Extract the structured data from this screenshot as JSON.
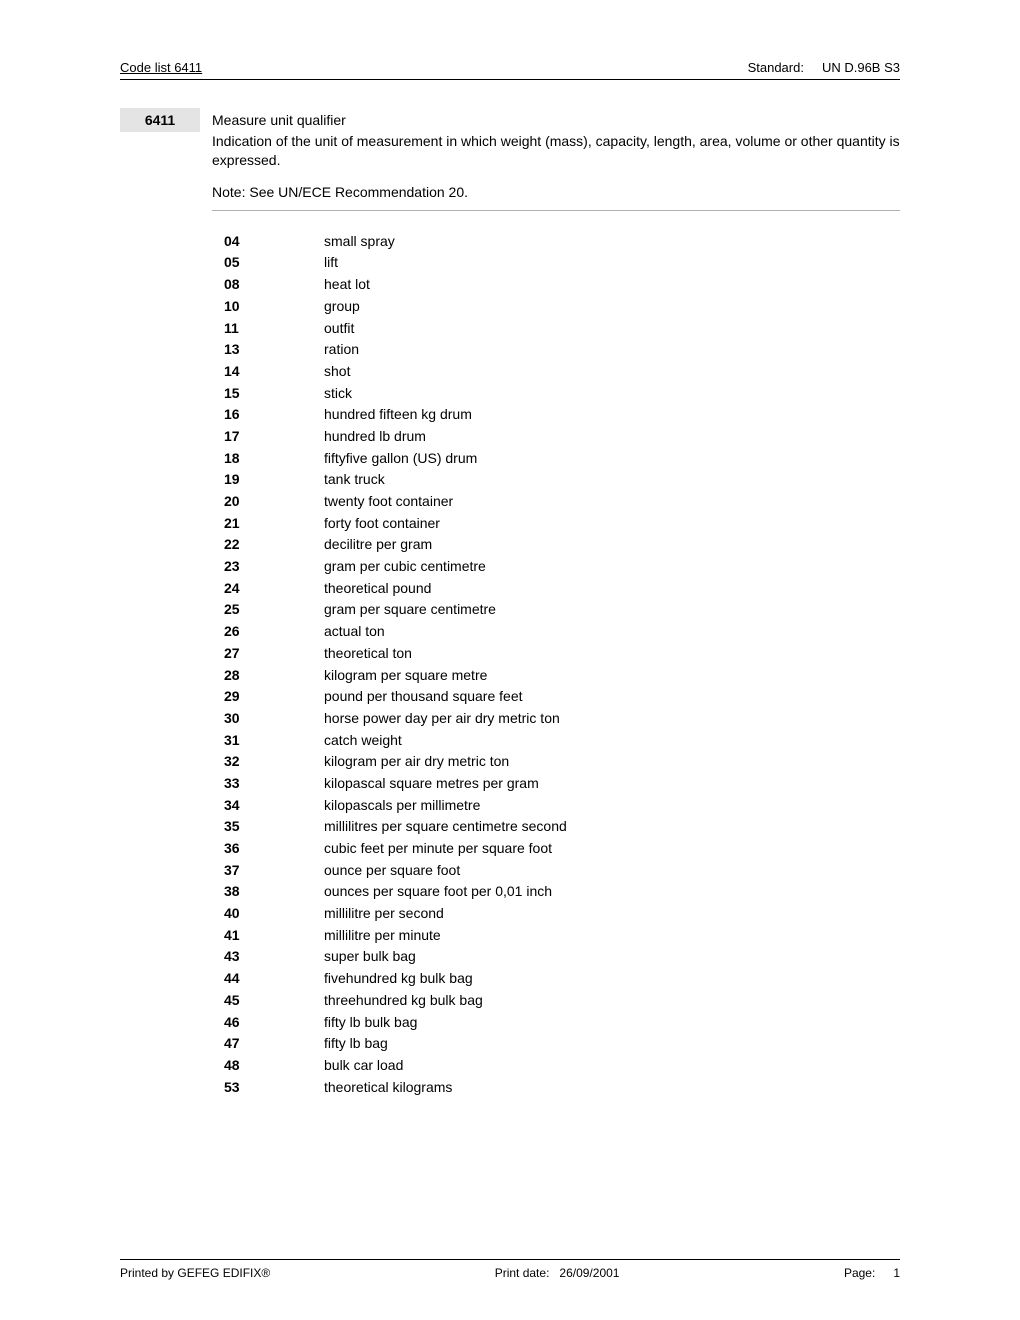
{
  "header": {
    "left": "Code list  6411",
    "standard_label": "Standard:",
    "standard_value": "UN D.96B S3"
  },
  "section": {
    "code": "6411",
    "title": "Measure unit qualifier",
    "description": "Indication of the unit of measurement in which weight (mass), capacity, length, area, volume or other quantity is expressed.",
    "note": "Note: See UN/ECE Recommendation 20."
  },
  "codes": [
    {
      "k": "04",
      "v": "small spray"
    },
    {
      "k": "05",
      "v": "lift"
    },
    {
      "k": "08",
      "v": "heat lot"
    },
    {
      "k": "10",
      "v": "group"
    },
    {
      "k": "11",
      "v": "outfit"
    },
    {
      "k": "13",
      "v": "ration"
    },
    {
      "k": "14",
      "v": "shot"
    },
    {
      "k": "15",
      "v": "stick"
    },
    {
      "k": "16",
      "v": "hundred fifteen kg drum"
    },
    {
      "k": "17",
      "v": "hundred lb drum"
    },
    {
      "k": "18",
      "v": "fiftyfive gallon (US) drum"
    },
    {
      "k": "19",
      "v": "tank truck"
    },
    {
      "k": "20",
      "v": "twenty foot container"
    },
    {
      "k": "21",
      "v": "forty foot container"
    },
    {
      "k": "22",
      "v": "decilitre per gram"
    },
    {
      "k": "23",
      "v": "gram per cubic centimetre"
    },
    {
      "k": "24",
      "v": "theoretical pound"
    },
    {
      "k": "25",
      "v": "gram per square centimetre"
    },
    {
      "k": "26",
      "v": "actual ton"
    },
    {
      "k": "27",
      "v": "theoretical ton"
    },
    {
      "k": "28",
      "v": "kilogram per square metre"
    },
    {
      "k": "29",
      "v": "pound per thousand square feet"
    },
    {
      "k": "30",
      "v": "horse power day per air dry metric ton"
    },
    {
      "k": "31",
      "v": "catch weight"
    },
    {
      "k": "32",
      "v": "kilogram per air dry metric ton"
    },
    {
      "k": "33",
      "v": "kilopascal square metres per gram"
    },
    {
      "k": "34",
      "v": "kilopascals per millimetre"
    },
    {
      "k": "35",
      "v": "millilitres per square centimetre second"
    },
    {
      "k": "36",
      "v": "cubic feet per minute per square foot"
    },
    {
      "k": "37",
      "v": "ounce per square foot"
    },
    {
      "k": "38",
      "v": "ounces per square foot per 0,01 inch"
    },
    {
      "k": "40",
      "v": "millilitre per second"
    },
    {
      "k": "41",
      "v": "millilitre per minute"
    },
    {
      "k": "43",
      "v": "super bulk bag"
    },
    {
      "k": "44",
      "v": "fivehundred kg bulk bag"
    },
    {
      "k": "45",
      "v": "threehundred kg bulk bag"
    },
    {
      "k": "46",
      "v": "fifty lb bulk bag"
    },
    {
      "k": "47",
      "v": "fifty lb bag"
    },
    {
      "k": "48",
      "v": "bulk car load"
    },
    {
      "k": "53",
      "v": "theoretical kilograms"
    }
  ],
  "footer": {
    "printed_by": "Printed by GEFEG EDIFIX®",
    "print_date_label": "Print date:",
    "print_date_value": "26/09/2001",
    "page_label": "Page:",
    "page_value": "1"
  }
}
